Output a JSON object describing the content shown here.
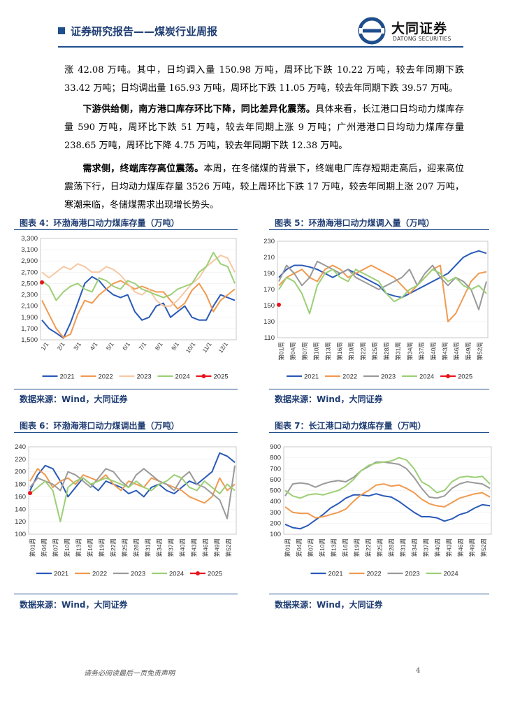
{
  "header": {
    "title": "证券研究报告——煤炭行业周报",
    "logo_cn": "大同证券",
    "logo_en": "DATONG SECURITIES"
  },
  "paragraphs": {
    "p1": "涨 42.08 万吨。其中，日均调入量 150.98 万吨，周环比下跌 10.22 万吨，较去年同期下跌 33.42 万吨；日均调出量 165.93 万吨，周环比下跌 11.05 万吨，较去年同期下跌 39.57 万吨。",
    "p2_bold": "下游供给侧，南方港口库存环比下降，同比差异化震荡。",
    "p2_text": "具体来看，长江港口日均动力煤库存量 590 万吨，周环比下跌 51 万吨，较去年同期上涨 9 万吨；广州港港口日均动力煤库存量 238.65 万吨，周环比下降 4.75 万吨，较去年同期下跌 12.38 万吨。",
    "p3_bold": "需求侧，终端库存高位震荡。",
    "p3_text": "本周，在冬储煤的背景下，终端电厂库存短期走高后，迎来高位震荡下行，日均动力煤库存量 3526 万吨，较上周环比下跌 17 万吨，较去年同期上涨 207 万吨，寒潮来临，冬储煤需求出现增长势头。"
  },
  "figures": {
    "fig4": {
      "caption": "图表 4：环渤海港口动力煤库存量（万吨）",
      "source": "数据来源：Wind，大同证券"
    },
    "fig5": {
      "caption": "图表 5：环渤海港口动力煤调入量（万吨）",
      "source": "数据来源：Wind，大同证券"
    },
    "fig6": {
      "caption": "图表 6：环渤海港口动力煤调出量（万吨）",
      "source": "数据来源：Wind，大同证券"
    },
    "fig7": {
      "caption": "图表 7：长江港口动力煤库存量（万吨）",
      "source": "数据来源：Wind，大同证券"
    }
  },
  "footer": {
    "disclaimer": "请务必阅读最后一页免责声明",
    "page": "4"
  },
  "colors": {
    "y2021": "#2a5ab8",
    "y2022": "#f09a50",
    "y2023": "#9a9a9a",
    "y2024": "#9ccf75",
    "y2025": "#e8141e",
    "brand": "#1f4e8c"
  },
  "chart_data": [
    {
      "id": "fig4",
      "type": "line",
      "title": "图表 4：环渤海港口动力煤库存量（万吨）",
      "x_axis": "date",
      "x_tick_labels": [
        "1/1",
        "2/1",
        "3/1",
        "4/1",
        "5/1",
        "6/1",
        "7/1",
        "8/1",
        "9/1",
        "10/1",
        "11/1",
        "12/1"
      ],
      "yticks": [
        "1,500",
        "1,700",
        "1,900",
        "2,100",
        "2,300",
        "2,500",
        "2,700",
        "2,900",
        "3,100",
        "3,300"
      ],
      "ylim": [
        1500,
        3300
      ],
      "legend": "bottom",
      "series": [
        {
          "name": "2021",
          "color": "#2a5ab8",
          "values": [
            1850,
            1700,
            1620,
            1530,
            1800,
            2150,
            2500,
            2620,
            2550,
            2400,
            2300,
            2250,
            2300,
            2000,
            1850,
            1900,
            2100,
            2150,
            1900,
            2000,
            2100,
            1900,
            1850,
            1850,
            2100,
            2300,
            2250,
            2200
          ]
        },
        {
          "name": "2022",
          "color": "#f09a50",
          "values": [
            2200,
            1950,
            1700,
            1540,
            1600,
            1950,
            2200,
            2150,
            2300,
            2400,
            2500,
            2550,
            2480,
            2400,
            2450,
            2400,
            2350,
            2350,
            2200,
            2050,
            2150,
            2380,
            2500,
            2300,
            2000,
            2200,
            2300,
            2400
          ]
        },
        {
          "name": "2023",
          "color": "#f6c8a4",
          "values": [
            2700,
            2600,
            2700,
            2800,
            2750,
            2850,
            2800,
            2700,
            2700,
            2800,
            2750,
            2650,
            2500,
            2350,
            2300,
            2400,
            2200,
            2100,
            2100,
            2200,
            2350,
            2500,
            2600,
            2800,
            2900,
            3000,
            2950,
            2700
          ]
        },
        {
          "name": "2024",
          "color": "#9ccf75",
          "values": [
            2550,
            2450,
            2200,
            2350,
            2450,
            2500,
            2400,
            2350,
            2600,
            2550,
            2450,
            2400,
            2550,
            2500,
            2400,
            2350,
            2300,
            2250,
            2300,
            2400,
            2450,
            2500,
            2700,
            2800,
            3050,
            2850,
            2800,
            2500
          ]
        },
        {
          "name": "2025",
          "color": "#e8141e",
          "values": [
            2520
          ]
        }
      ]
    },
    {
      "id": "fig5",
      "type": "line",
      "title": "图表 5：环渤海港口动力煤调入量（万吨）",
      "x_axis": "week",
      "x_tick_labels": [
        "第01周",
        "第04周",
        "第07周",
        "第10周",
        "第13周",
        "第16周",
        "第19周",
        "第22周",
        "第25周",
        "第28周",
        "第31周",
        "第34周",
        "第37周",
        "第40周",
        "第43周",
        "第46周",
        "第49周",
        "第52周"
      ],
      "yticks": [
        "110",
        "130",
        "150",
        "170",
        "190",
        "210",
        "230"
      ],
      "ylim": [
        110,
        230
      ],
      "legend": "bottom",
      "series": [
        {
          "name": "2021",
          "color": "#2a5ab8",
          "values": [
            185,
            195,
            200,
            200,
            198,
            195,
            190,
            185,
            190,
            195,
            190,
            185,
            180,
            175,
            165,
            162,
            160,
            165,
            170,
            175,
            180,
            185,
            190,
            200,
            210,
            215,
            218,
            215
          ]
        },
        {
          "name": "2022",
          "color": "#f09a50",
          "values": [
            175,
            185,
            190,
            195,
            185,
            180,
            195,
            200,
            195,
            185,
            190,
            195,
            200,
            195,
            190,
            185,
            175,
            165,
            175,
            185,
            195,
            200,
            130,
            140,
            160,
            180,
            190,
            192
          ]
        },
        {
          "name": "2023",
          "color": "#9a9a9a",
          "values": [
            180,
            200,
            190,
            175,
            185,
            205,
            200,
            195,
            190,
            195,
            185,
            180,
            175,
            170,
            175,
            180,
            185,
            195,
            175,
            190,
            200,
            185,
            175,
            185,
            180,
            170,
            145,
            180
          ]
        },
        {
          "name": "2024",
          "color": "#9ccf75",
          "values": [
            170,
            185,
            180,
            165,
            140,
            175,
            190,
            195,
            185,
            180,
            195,
            190,
            185,
            180,
            165,
            155,
            160,
            170,
            175,
            185,
            195,
            190,
            180,
            185,
            175,
            170,
            175,
            165
          ]
        },
        {
          "name": "2025",
          "color": "#e8141e",
          "values": [
            151
          ]
        }
      ]
    },
    {
      "id": "fig6",
      "type": "line",
      "title": "图表 6：环渤海港口动力煤调出量（万吨）",
      "x_axis": "week",
      "x_tick_labels": [
        "第01周",
        "第04周",
        "第07周",
        "第10周",
        "第13周",
        "第16周",
        "第19周",
        "第22周",
        "第25周",
        "第28周",
        "第31周",
        "第34周",
        "第37周",
        "第40周",
        "第43周",
        "第46周",
        "第49周",
        "第52周"
      ],
      "yticks": [
        "100",
        "120",
        "140",
        "160",
        "180",
        "200",
        "220",
        "240"
      ],
      "ylim": [
        100,
        240
      ],
      "legend": "bottom",
      "series": [
        {
          "name": "2021",
          "color": "#2a5ab8",
          "values": [
            170,
            195,
            210,
            205,
            185,
            160,
            175,
            190,
            180,
            170,
            185,
            180,
            175,
            165,
            170,
            160,
            175,
            180,
            170,
            165,
            175,
            185,
            180,
            190,
            200,
            230,
            225,
            215
          ]
        },
        {
          "name": "2022",
          "color": "#f09a50",
          "values": [
            185,
            205,
            195,
            175,
            185,
            190,
            180,
            195,
            190,
            185,
            195,
            180,
            170,
            185,
            180,
            175,
            190,
            185,
            180,
            175,
            170,
            160,
            155,
            150,
            160,
            190,
            170,
            180
          ]
        },
        {
          "name": "2023",
          "color": "#9a9a9a",
          "values": [
            175,
            190,
            185,
            180,
            170,
            200,
            195,
            185,
            175,
            190,
            205,
            200,
            185,
            175,
            195,
            205,
            195,
            185,
            180,
            170,
            190,
            200,
            180,
            175,
            165,
            155,
            125,
            210
          ]
        },
        {
          "name": "2024",
          "color": "#9ccf75",
          "values": [
            165,
            175,
            185,
            170,
            120,
            175,
            185,
            190,
            180,
            185,
            190,
            185,
            180,
            175,
            185,
            175,
            170,
            180,
            185,
            195,
            190,
            175,
            170,
            185,
            175,
            165,
            180,
            170
          ]
        },
        {
          "name": "2025",
          "color": "#e8141e",
          "values": [
            166
          ]
        }
      ]
    },
    {
      "id": "fig7",
      "type": "line",
      "title": "图表 7：长江港口动力煤库存量（万吨）",
      "x_axis": "week",
      "x_tick_labels": [
        "第01周",
        "第04周",
        "第07周",
        "第10周",
        "第13周",
        "第16周",
        "第19周",
        "第22周",
        "第25周",
        "第28周",
        "第31周",
        "第34周",
        "第37周",
        "第40周",
        "第43周",
        "第46周",
        "第49周",
        "第52周"
      ],
      "yticks": [
        "100",
        "200",
        "300",
        "400",
        "500",
        "600",
        "700",
        "800",
        "900"
      ],
      "ylim": [
        100,
        900
      ],
      "legend": "bottom",
      "series": [
        {
          "name": "2021",
          "color": "#2a5ab8",
          "values": [
            190,
            160,
            150,
            180,
            230,
            280,
            340,
            380,
            430,
            460,
            460,
            450,
            470,
            450,
            440,
            400,
            350,
            300,
            260,
            260,
            250,
            220,
            240,
            280,
            300,
            340,
            370,
            360
          ]
        },
        {
          "name": "2022",
          "color": "#f09a50",
          "values": [
            350,
            300,
            290,
            290,
            250,
            260,
            280,
            300,
            330,
            400,
            460,
            500,
            550,
            560,
            540,
            550,
            520,
            480,
            420,
            380,
            360,
            350,
            390,
            430,
            450,
            470,
            480,
            440
          ]
        },
        {
          "name": "2023",
          "color": "#9a9a9a",
          "values": [
            450,
            560,
            570,
            560,
            530,
            560,
            580,
            590,
            580,
            620,
            680,
            720,
            760,
            760,
            750,
            740,
            700,
            620,
            520,
            440,
            430,
            450,
            520,
            560,
            580,
            570,
            560,
            520
          ]
        },
        {
          "name": "2024",
          "color": "#9ccf75",
          "values": [
            500,
            450,
            430,
            460,
            470,
            460,
            480,
            500,
            540,
            600,
            680,
            730,
            750,
            760,
            770,
            800,
            780,
            700,
            580,
            540,
            480,
            500,
            580,
            620,
            630,
            620,
            630,
            560
          ]
        }
      ]
    }
  ]
}
